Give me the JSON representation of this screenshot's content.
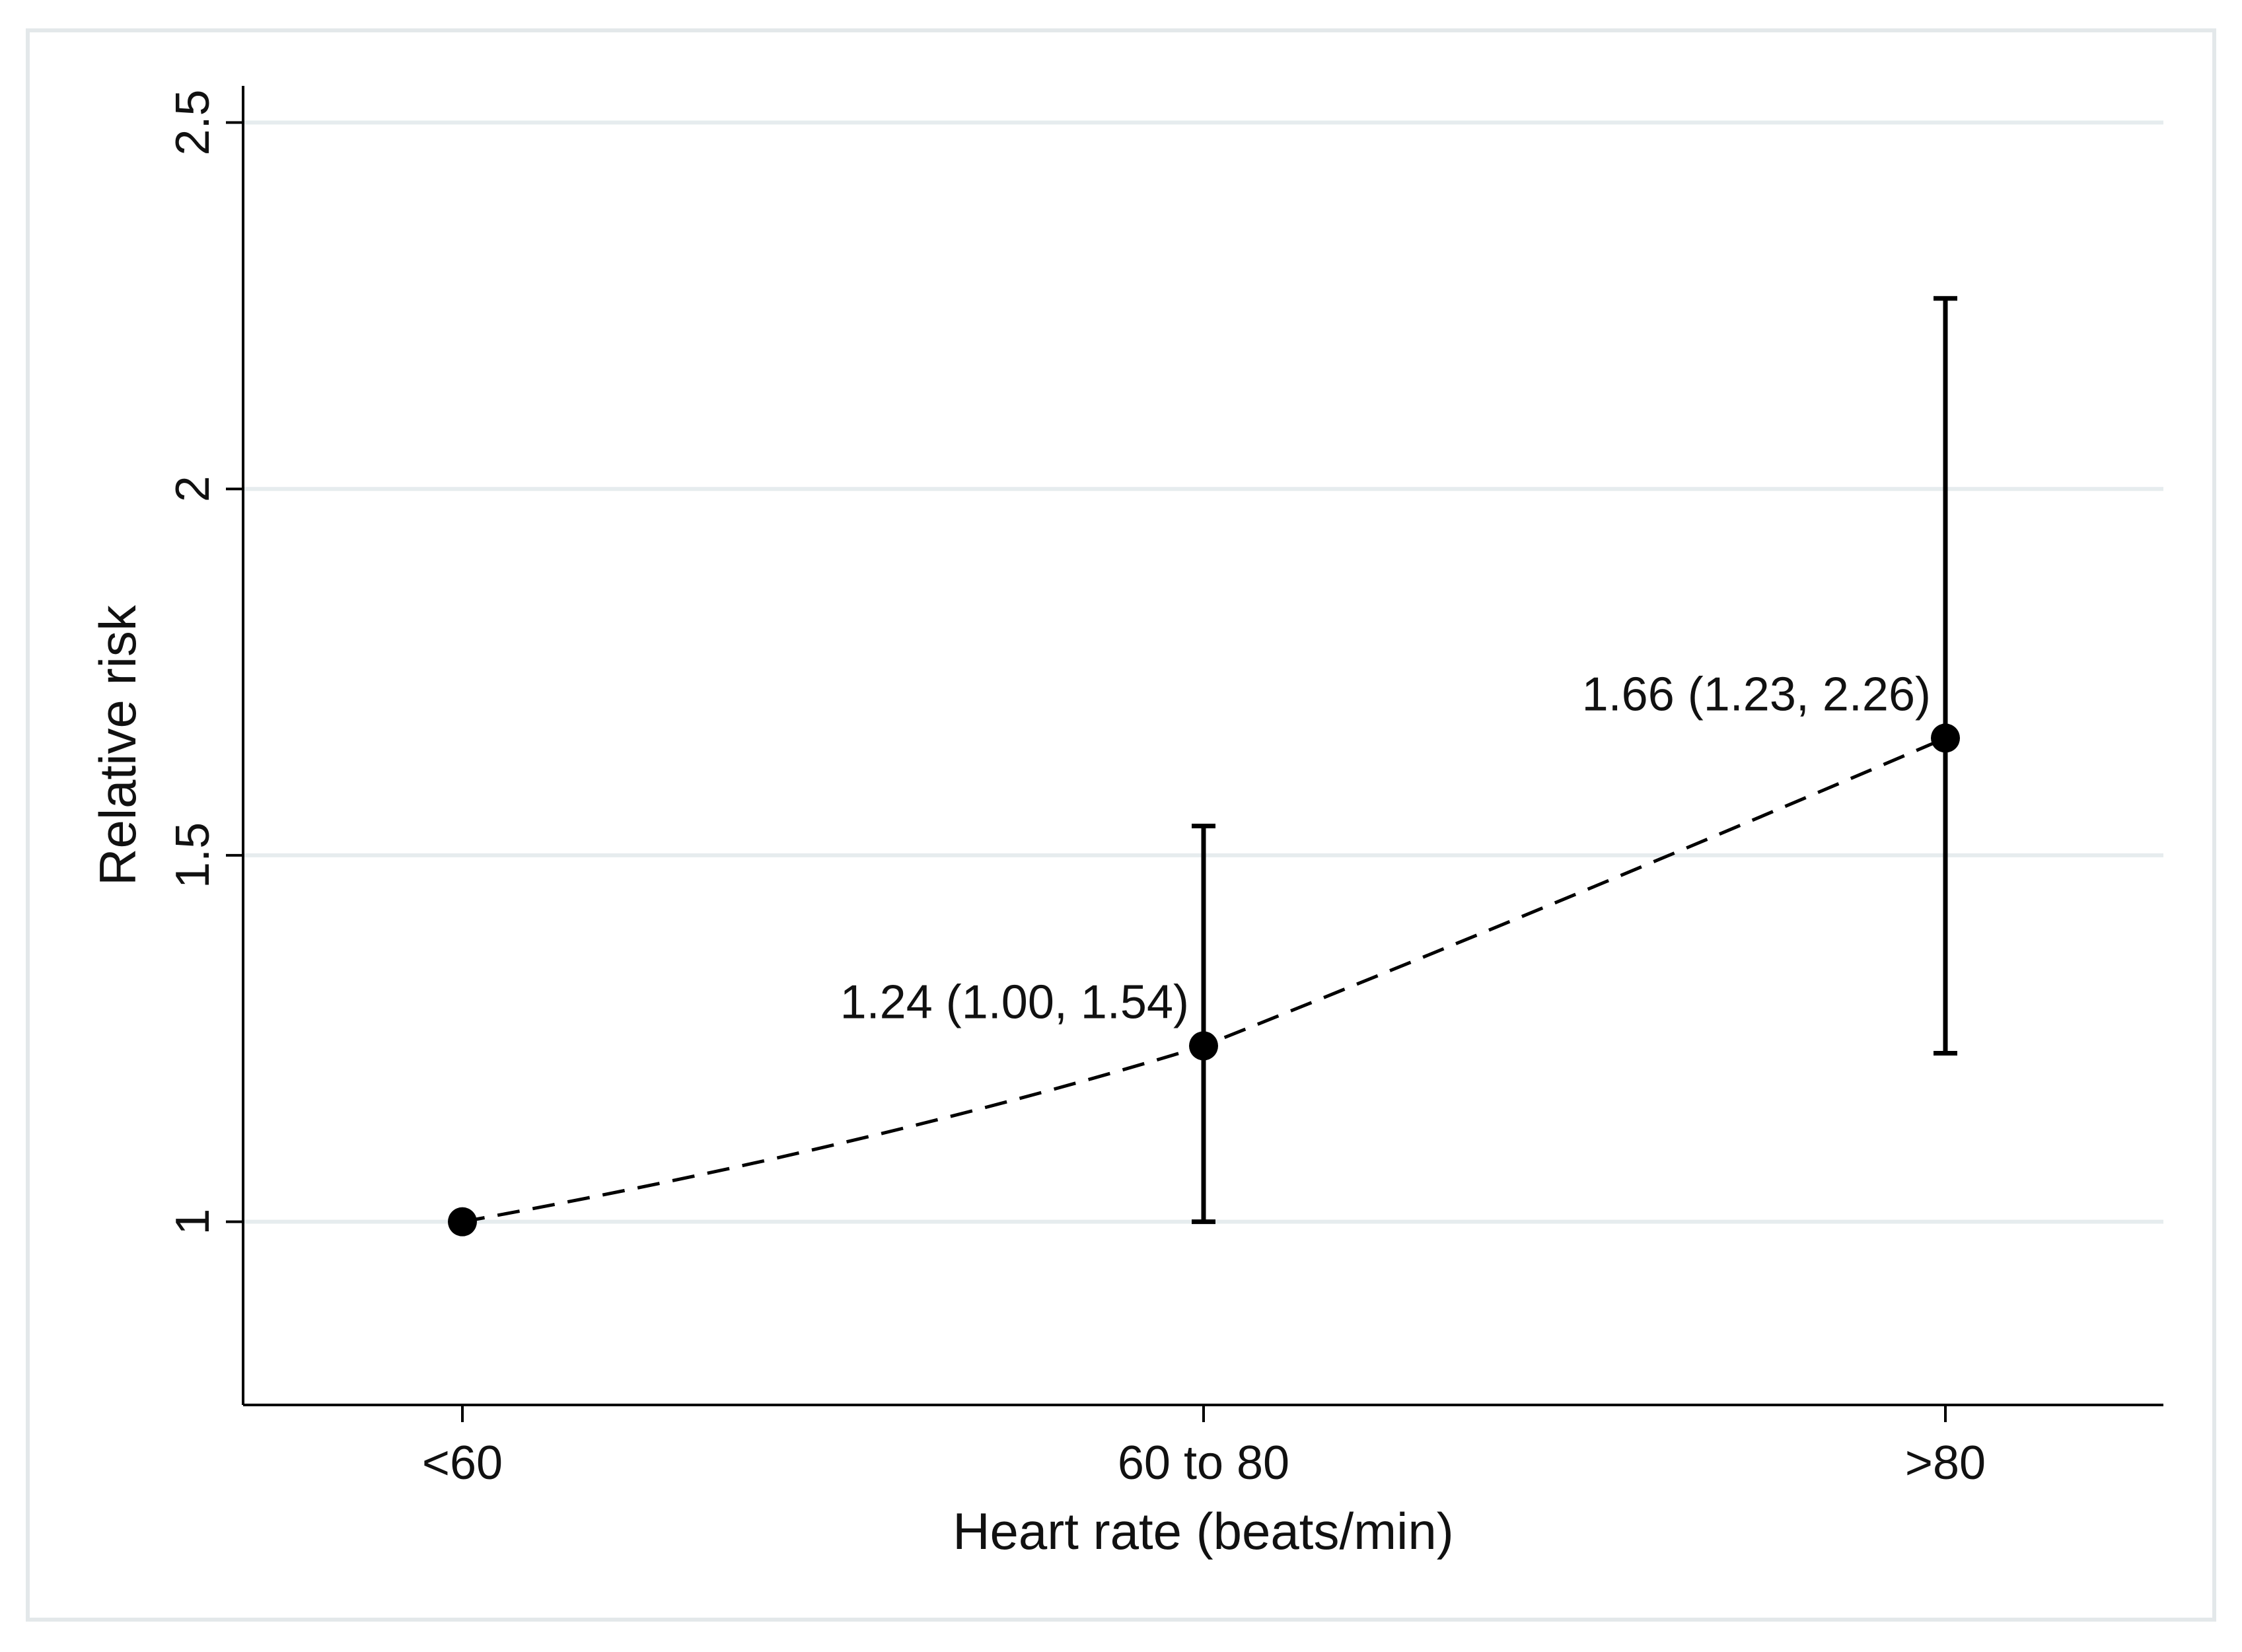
{
  "chart_data": {
    "type": "line",
    "title": "",
    "xlabel": "Heart rate (beats/min)",
    "ylabel": "Relative risk",
    "categories": [
      "<60",
      "60 to 80",
      ">80"
    ],
    "series": [
      {
        "name": "Relative risk",
        "values": [
          1.0,
          1.24,
          1.66
        ],
        "ci_lower": [
          null,
          1.0,
          1.23
        ],
        "ci_upper": [
          null,
          1.54,
          2.26
        ],
        "line_style": "dashed"
      }
    ],
    "data_labels": [
      "",
      "1.24 (1.00, 1.54)",
      "1.66 (1.23, 2.26)"
    ],
    "ylim": [
      0.75,
      2.55
    ],
    "yticks": [
      1,
      1.5,
      2,
      2.5
    ],
    "ytick_labels": [
      "1",
      "1.5",
      "2",
      "2.5"
    ],
    "grid": true,
    "colors": {
      "grid": "#e6ecee",
      "axis": "#000000",
      "marker": "#000000",
      "frame": "#e3e8ea"
    }
  }
}
